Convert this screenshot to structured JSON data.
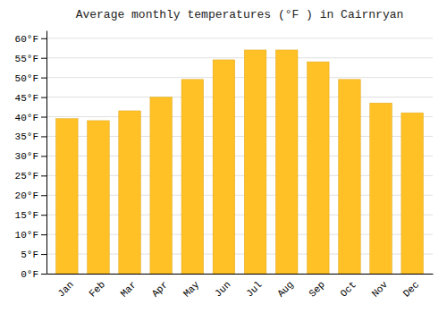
{
  "chart_data": {
    "type": "bar",
    "title": "Average monthly temperatures (°F ) in Cairnryan",
    "categories": [
      "Jan",
      "Feb",
      "Mar",
      "Apr",
      "May",
      "Jun",
      "Jul",
      "Aug",
      "Sep",
      "Oct",
      "Nov",
      "Dec"
    ],
    "values": [
      39.5,
      39.0,
      41.5,
      45.0,
      49.5,
      54.5,
      57.0,
      57.0,
      54.0,
      49.5,
      43.5,
      41.0
    ],
    "color": "#FFC125",
    "ylim": [
      0,
      62
    ],
    "yticks": [
      {
        "value": 0,
        "label": "0°F"
      },
      {
        "value": 5,
        "label": "5°F"
      },
      {
        "value": 10,
        "label": "10°F"
      },
      {
        "value": 15,
        "label": "15°F"
      },
      {
        "value": 20,
        "label": "20°F"
      },
      {
        "value": 25,
        "label": "25°F"
      },
      {
        "value": 30,
        "label": "30°F"
      },
      {
        "value": 35,
        "label": "35°F"
      },
      {
        "value": 40,
        "label": "40°F"
      },
      {
        "value": 45,
        "label": "45°F"
      },
      {
        "value": 50,
        "label": "50°F"
      },
      {
        "value": 55,
        "label": "55°F"
      },
      {
        "value": 60,
        "label": "60°F"
      }
    ],
    "grid": true
  }
}
